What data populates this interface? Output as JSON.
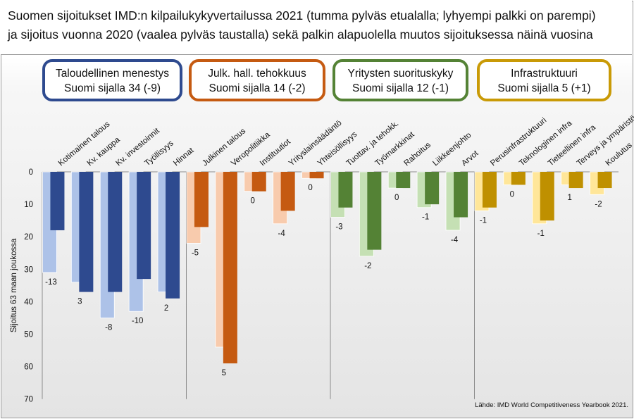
{
  "title": {
    "line1": "Suomen sijoitukset IMD:n kilpailukykyvertailussa 2021 (tumma pylväs etualalla; lyhyempi palkki on parempi)",
    "line2": "ja sijoitus vuonna 2020 (vaalea pylväs taustalla) sekä palkin alapuolella muutos sijoituksessa näinä vuosina"
  },
  "source": "Lähde: IMD World Competitiveness Yearbook 2021.",
  "chart_data": {
    "type": "bar",
    "ylabel": "Sijoitus 63 maan joukossa",
    "ylim": [
      0,
      70
    ],
    "yticks": [
      0,
      10,
      20,
      30,
      40,
      50,
      60,
      70
    ],
    "y_inverted": true,
    "grid": false,
    "groups": [
      {
        "name": "Taloudellinen menestys",
        "subtitle": "Suomi sijalla 34 (-9)",
        "color_dark": "#2e4a8f",
        "color_light": "#adc2e8",
        "color_border": "#2e4a8f",
        "items": [
          {
            "label": "Kotimainen talous",
            "y2021": 18,
            "y2020": 31,
            "change": "-13"
          },
          {
            "label": "Kv. kauppa",
            "y2021": 37,
            "y2020": 34,
            "change": "3"
          },
          {
            "label": "Kv. investoinnit",
            "y2021": 37,
            "y2020": 45,
            "change": "-8"
          },
          {
            "label": "Työllisyys",
            "y2021": 33,
            "y2020": 43,
            "change": "-10"
          },
          {
            "label": "Hinnat",
            "y2021": 39,
            "y2020": 37,
            "change": "2"
          }
        ]
      },
      {
        "name": "Julk. hall. tehokkuus",
        "subtitle": "Suomi sijalla 14 (-2)",
        "color_dark": "#c55a11",
        "color_light": "#f8cbad",
        "color_border": "#c55a11",
        "items": [
          {
            "label": "Julkinen talous",
            "y2021": 17,
            "y2020": 22,
            "change": "-5"
          },
          {
            "label": "Veropolitiikka",
            "y2021": 59,
            "y2020": 54,
            "change": "5"
          },
          {
            "label": "Instituutiot",
            "y2021": 6,
            "y2020": 6,
            "change": "0"
          },
          {
            "label": "Yrityslainsäädäntö",
            "y2021": 12,
            "y2020": 16,
            "change": "-4"
          },
          {
            "label": "Yhteisöllisyys",
            "y2021": 2,
            "y2020": 2,
            "change": "0"
          }
        ]
      },
      {
        "name": "Yritysten suorituskyky",
        "subtitle": "Suomi sijalla 12 (-1)",
        "color_dark": "#548235",
        "color_light": "#c5e0b4",
        "color_border": "#548235",
        "items": [
          {
            "label": "Tuottav. ja tehokk.",
            "y2021": 11,
            "y2020": 14,
            "change": "-3"
          },
          {
            "label": "Työmarkkinat",
            "y2021": 24,
            "y2020": 26,
            "change": "-2"
          },
          {
            "label": "Rahoitus",
            "y2021": 5,
            "y2020": 5,
            "change": "0"
          },
          {
            "label": "Liikkeenjohto",
            "y2021": 10,
            "y2020": 11,
            "change": "-1"
          },
          {
            "label": "Arvot",
            "y2021": 14,
            "y2020": 18,
            "change": "-4"
          }
        ]
      },
      {
        "name": "Infrastruktuuri",
        "subtitle": "Suomi sijalla 5 (+1)",
        "color_dark": "#bf9000",
        "color_light": "#ffe699",
        "color_border": "#c99a06",
        "items": [
          {
            "label": "Perusinfrastruktuuri",
            "y2021": 11,
            "y2020": 12,
            "change": "-1"
          },
          {
            "label": "Teknologinen infra",
            "y2021": 4,
            "y2020": 4,
            "change": "0"
          },
          {
            "label": "Tieteellinen infra",
            "y2021": 15,
            "y2020": 16,
            "change": "-1"
          },
          {
            "label": "Terveys ja ympäristö",
            "y2021": 5,
            "y2020": 4,
            "change": "1"
          },
          {
            "label": "Koulutus",
            "y2021": 5,
            "y2020": 7,
            "change": "-2"
          }
        ]
      }
    ]
  }
}
